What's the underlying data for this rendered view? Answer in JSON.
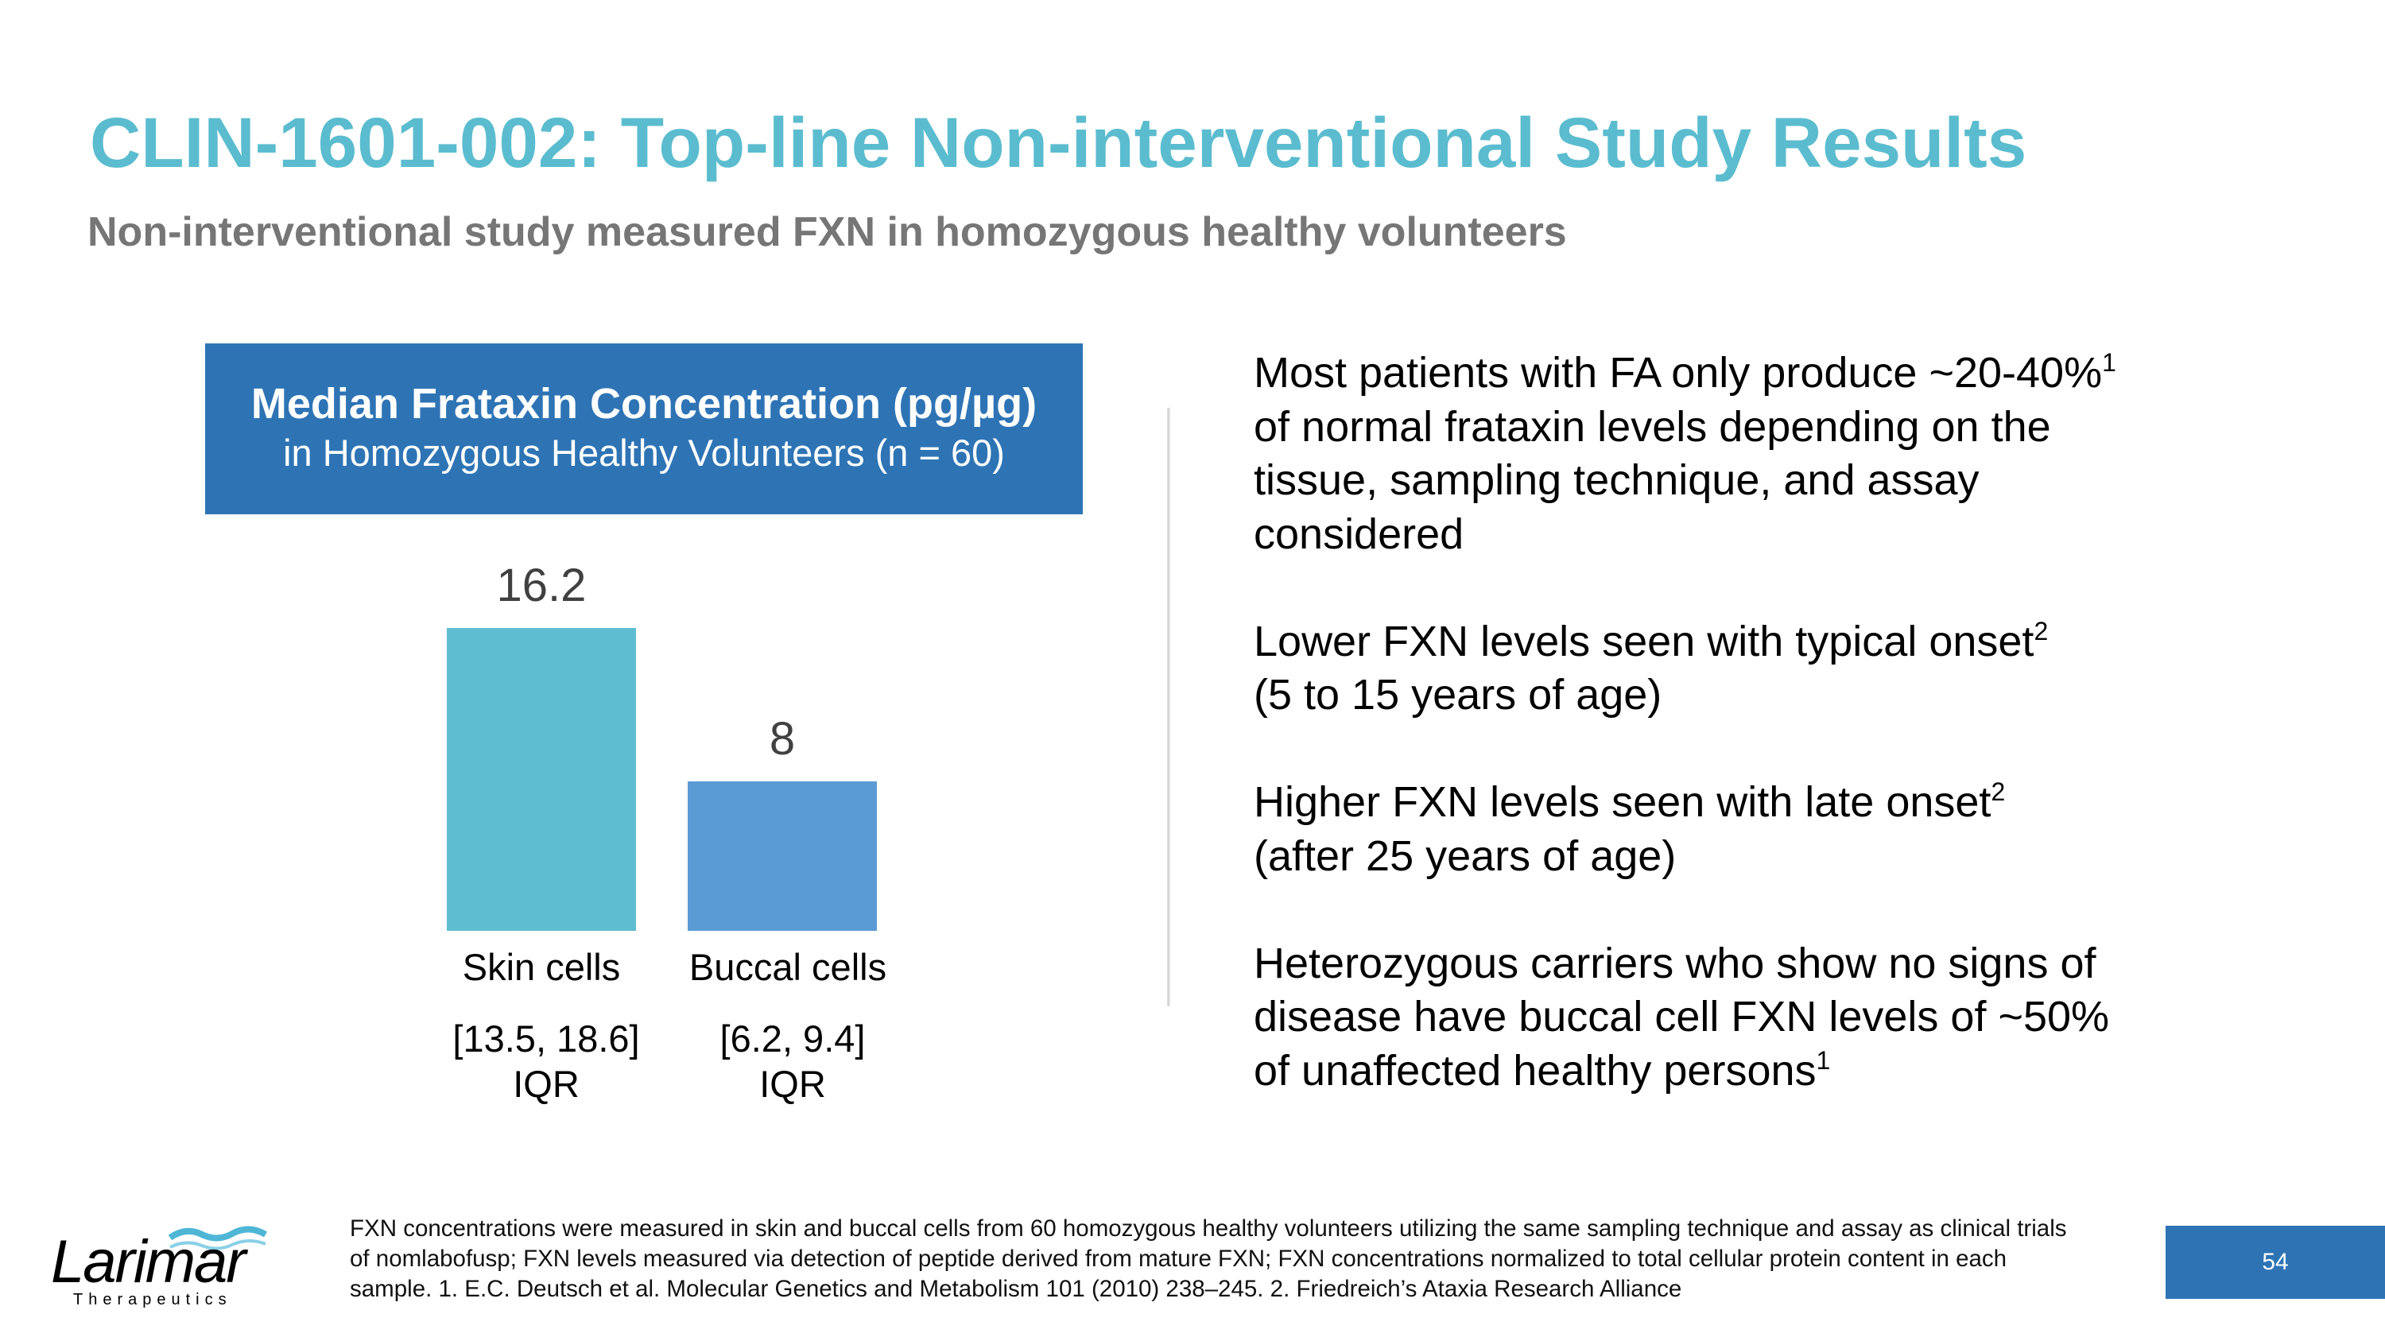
{
  "header": {
    "title": "CLIN-1601-002: Top-line Non-interventional Study Results",
    "subtitle": "Non-interventional study measured FXN in homozygous healthy volunteers"
  },
  "chart_data": {
    "type": "bar",
    "title": "Median Frataxin Concentration (pg/µg)",
    "subtitle": "in Homozygous Healthy Volunteers (n = 60)",
    "categories": [
      "Skin cells",
      "Buccal cells"
    ],
    "values": [
      16.2,
      8
    ],
    "value_labels": [
      "16.2",
      "8"
    ],
    "iqr_labels": [
      "[13.5, 18.6]",
      "[6.2, 9.4]"
    ],
    "iqr_suffix": "IQR",
    "colors": [
      "#5FBDD2",
      "#5B9BD5"
    ],
    "grid": false,
    "ylim": [
      0,
      16.2
    ]
  },
  "bullets": [
    {
      "text": "Most patients with FA only produce ~20-40%",
      "sup": "1",
      "rest": "\n of normal frataxin levels depending on the\ntissue, sampling technique, and assay\nconsidered"
    },
    {
      "text": "Lower FXN levels seen with typical onset",
      "sup": "2",
      "rest": "\n (5 to 15 years of age)"
    },
    {
      "text": "Higher FXN levels seen with late onset",
      "sup": "2",
      "rest": "\n (after 25 years of age)"
    },
    {
      "text": "Heterozygous carriers who show no signs of\ndisease have buccal cell FXN levels of ~50%\nof unaffected healthy persons",
      "sup": "1",
      "rest": ""
    }
  ],
  "footnote": "FXN concentrations were measured in skin and buccal cells from 60 homozygous healthy volunteers utilizing the same sampling technique and assay as clinical trials of nomlabofusp; FXN levels measured via detection of peptide derived from mature FXN; FXN concentrations normalized to total cellular protein content in each sample. 1. E.C. Deutsch et al. Molecular Genetics and Metabolism 101 (2010) 238–245. 2. Friedreich’s Ataxia Research Alliance",
  "logo": {
    "name": "Larimar",
    "tagline": "Therapeutics"
  },
  "page_number": "54",
  "colors": {
    "title": "#5BBCCF",
    "accent": "#2E74B5"
  }
}
